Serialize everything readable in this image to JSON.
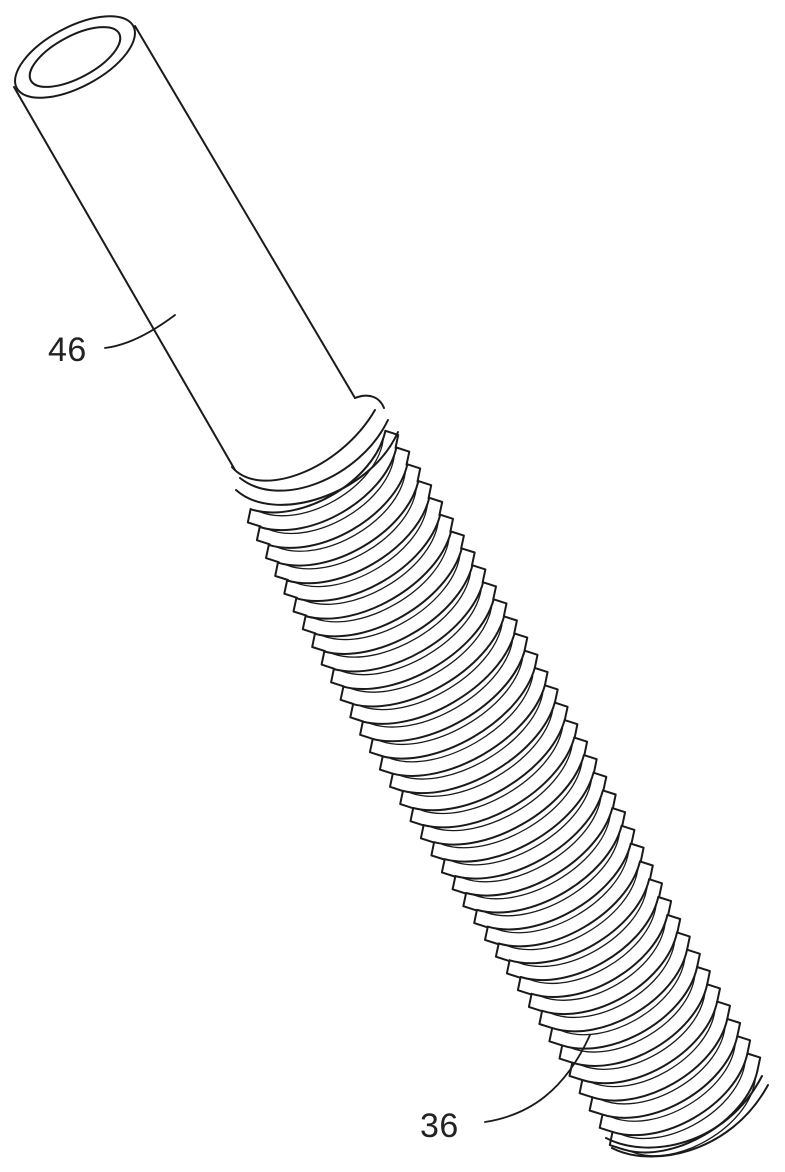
{
  "figure": {
    "description_icon": "threaded-implant-with-tube-icon",
    "colors": {
      "line": "#1a1a1a",
      "background": "#ffffff"
    }
  },
  "labels": {
    "tube": "46",
    "threaded_body": "36"
  }
}
